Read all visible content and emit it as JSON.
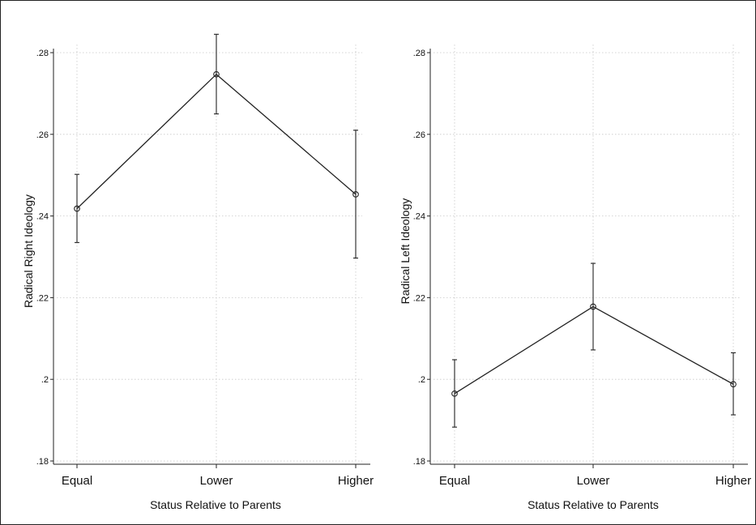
{
  "chart_data": [
    {
      "type": "line",
      "xlabel": "Status Relative to Parents",
      "ylabel": "Radical Right Ideology",
      "categories": [
        "Equal",
        "Lower",
        "Higher"
      ],
      "ylim": [
        0.18,
        0.28
      ],
      "yticks": [
        ".18",
        ".2",
        ".22",
        ".24",
        ".26",
        ".28"
      ],
      "ytick_values": [
        0.18,
        0.2,
        0.22,
        0.24,
        0.26,
        0.28
      ],
      "grid": true,
      "series": [
        {
          "values": [
            0.2418,
            0.2747,
            0.2453
          ],
          "ci_low": [
            0.2335,
            0.265,
            0.2297
          ],
          "ci_high": [
            0.2502,
            0.2845,
            0.261
          ]
        }
      ]
    },
    {
      "type": "line",
      "xlabel": "Status Relative to Parents",
      "ylabel": "Radical Left Ideology",
      "categories": [
        "Equal",
        "Lower",
        "Higher"
      ],
      "ylim": [
        0.18,
        0.28
      ],
      "yticks": [
        ".18",
        ".2",
        ".22",
        ".24",
        ".26",
        ".28"
      ],
      "ytick_values": [
        0.18,
        0.2,
        0.22,
        0.24,
        0.26,
        0.28
      ],
      "grid": true,
      "series": [
        {
          "values": [
            0.1965,
            0.2178,
            0.1988
          ],
          "ci_low": [
            0.1883,
            0.2072,
            0.1913
          ],
          "ci_high": [
            0.2048,
            0.2284,
            0.2065
          ]
        }
      ]
    }
  ]
}
